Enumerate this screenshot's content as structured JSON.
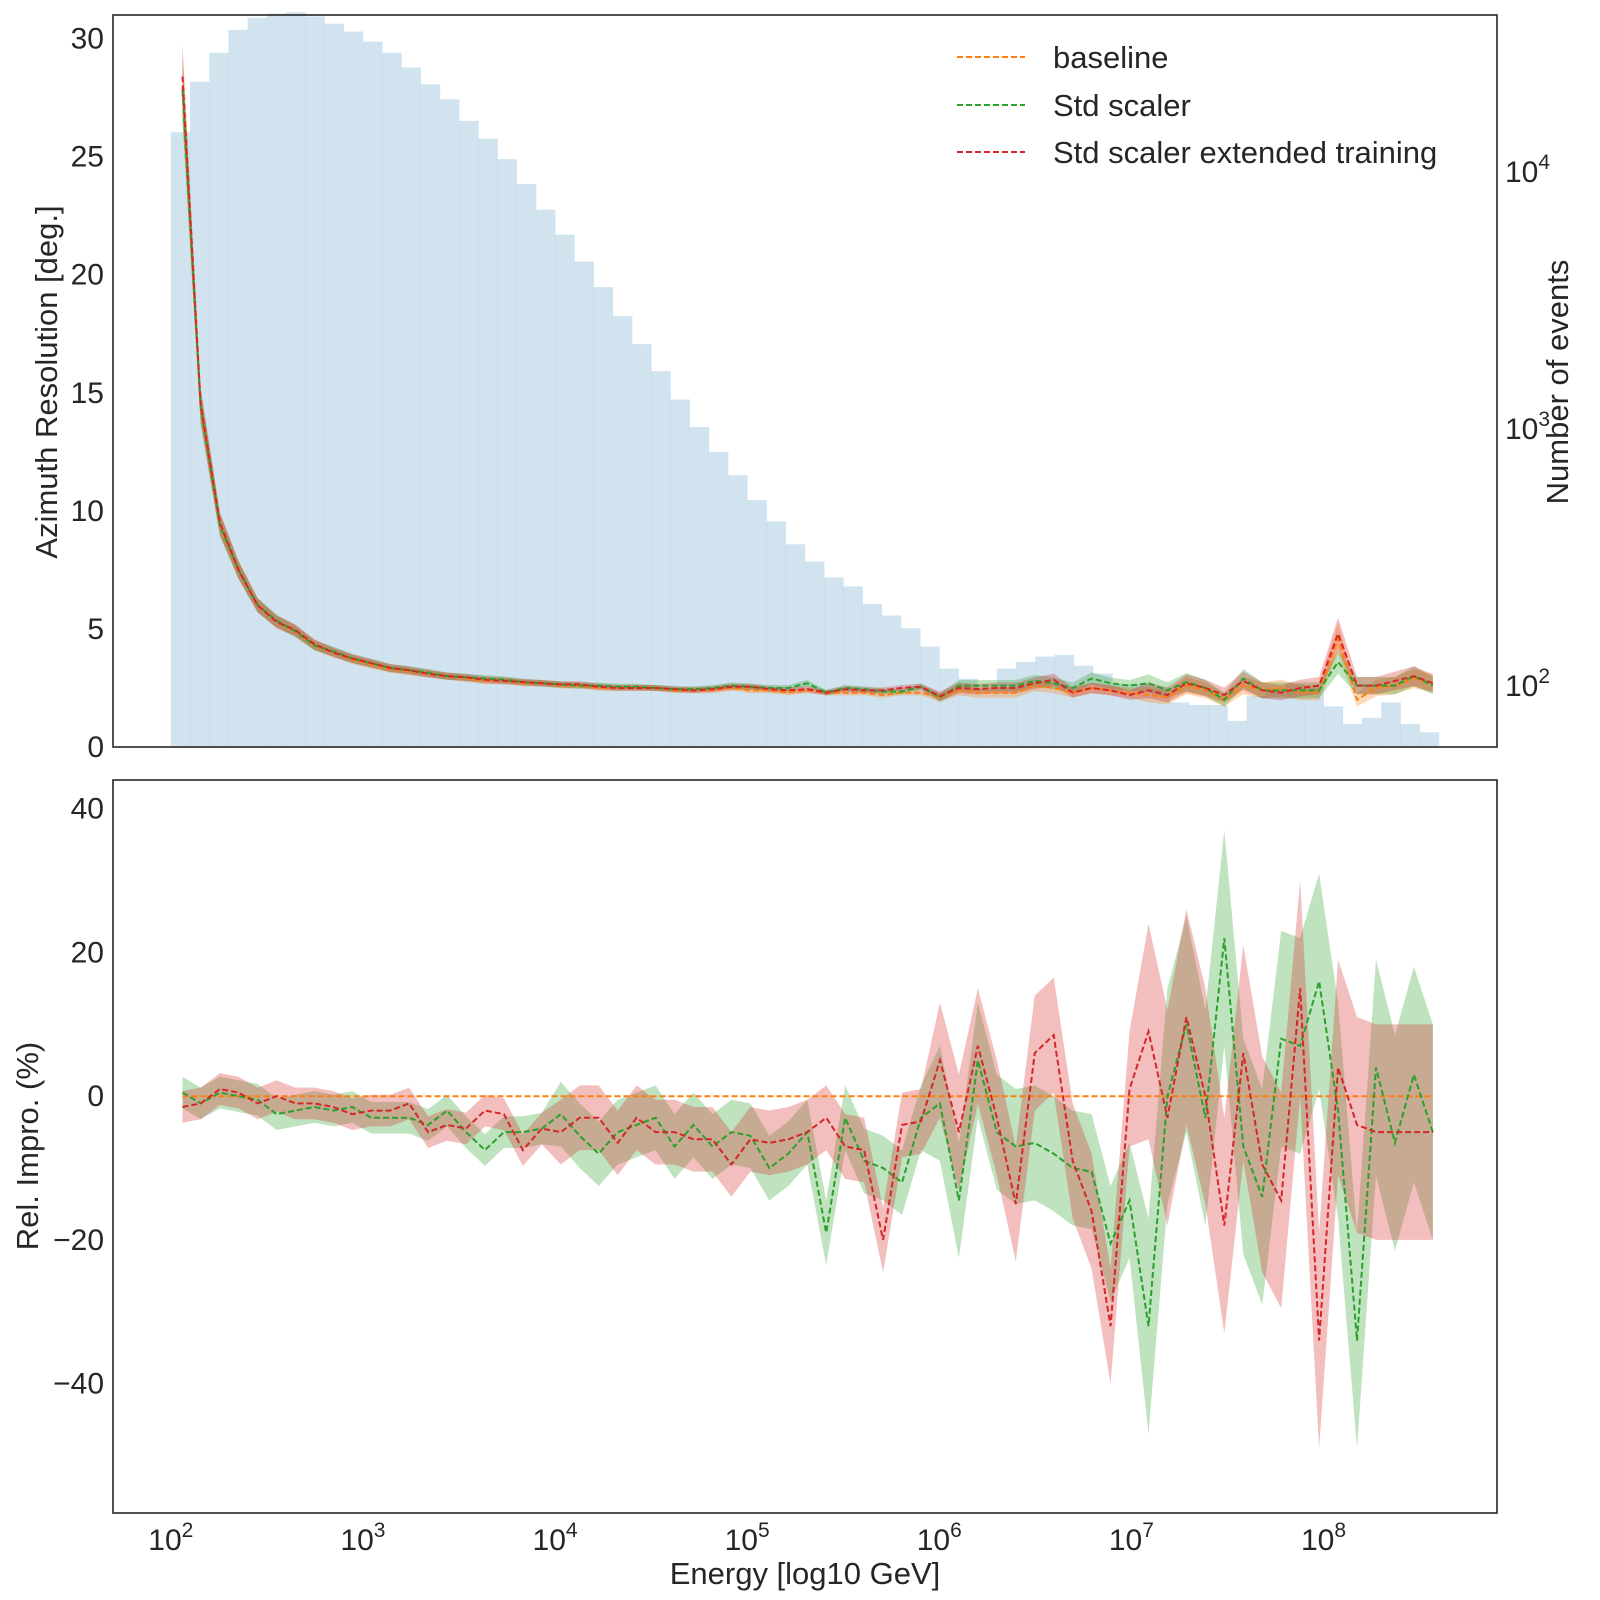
{
  "colors": {
    "baseline": "#ff7f0e",
    "std": "#2ca02c",
    "ext": "#d62728",
    "hist": "#b9d4e6",
    "text": "#262626"
  },
  "chart_data": [
    {
      "type": "line",
      "panel": "top",
      "ylabel": "Azimuth Resolution [deg.]",
      "ylabel_right": "Number of events",
      "xscale": "log",
      "xlim": [
        50,
        800000000
      ],
      "ylim": [
        0,
        31
      ],
      "yticks": [
        "0",
        "5",
        "10",
        "15",
        "20",
        "25",
        "30"
      ],
      "right_axis": {
        "scale": "log",
        "ylim": [
          57,
          40000
        ],
        "ticks": [
          {
            "base": "10",
            "exp": "2",
            "value": 100
          },
          {
            "base": "10",
            "exp": "3",
            "value": 1000
          },
          {
            "base": "10",
            "exp": "4",
            "value": 10000
          }
        ]
      },
      "legend": {
        "position": "upper right",
        "entries": [
          {
            "key": "baseline",
            "label": "baseline"
          },
          {
            "key": "std",
            "label": "Std scaler"
          },
          {
            "key": "ext",
            "label": "Std scaler extended training"
          }
        ]
      },
      "x": [
        115,
        143,
        180,
        225,
        283,
        355,
        445,
        559,
        701,
        880,
        1104,
        1386,
        1739,
        2183,
        2740,
        3439,
        4316,
        5417,
        6799,
        8534,
        10711,
        13443,
        16873,
        21177,
        26580,
        33361,
        41871,
        52553,
        65961,
        82788,
        103907,
        130416,
        163687,
        205446,
        257856,
        323638,
        406203,
        509831,
        639895,
        803140,
        1008030,
        1265190,
        1587950,
        1993060,
        2501520,
        3139690,
        3940670,
        4945980,
        6207760,
        7791440,
        9779130,
        12273900,
        15405100,
        19335200,
        24267900,
        30458800,
        38229000,
        47981700,
        60222300,
        75585600,
        94868800,
        119070000,
        149447000,
        187573000,
        235425000,
        295484000,
        370867000
      ],
      "series": [
        {
          "key": "baseline",
          "values": [
            28.0,
            14.4,
            9.4,
            7.5,
            6.0,
            5.3,
            4.9,
            4.3,
            4.0,
            3.7,
            3.5,
            3.3,
            3.2,
            3.1,
            3.0,
            2.9,
            2.8,
            2.8,
            2.7,
            2.7,
            2.6,
            2.6,
            2.5,
            2.5,
            2.5,
            2.5,
            2.4,
            2.4,
            2.4,
            2.5,
            2.4,
            2.4,
            2.3,
            2.4,
            2.3,
            2.3,
            2.3,
            2.2,
            2.3,
            2.3,
            2.1,
            2.4,
            2.3,
            2.3,
            2.3,
            2.6,
            2.5,
            2.3,
            2.5,
            2.4,
            2.3,
            2.2,
            2.1,
            2.6,
            2.4,
            2.0,
            2.6,
            2.4,
            2.5,
            2.3,
            2.3,
            4.6,
            2.0,
            2.5,
            2.6,
            2.9,
            2.7
          ]
        },
        {
          "key": "std",
          "values": [
            27.8,
            14.4,
            9.4,
            7.5,
            6.0,
            5.35,
            4.9,
            4.3,
            4.05,
            3.75,
            3.55,
            3.35,
            3.25,
            3.15,
            3.0,
            2.95,
            2.9,
            2.85,
            2.75,
            2.7,
            2.65,
            2.6,
            2.6,
            2.55,
            2.55,
            2.5,
            2.45,
            2.45,
            2.5,
            2.6,
            2.55,
            2.5,
            2.5,
            2.7,
            2.3,
            2.5,
            2.45,
            2.35,
            2.35,
            2.55,
            2.1,
            2.6,
            2.6,
            2.6,
            2.6,
            2.8,
            2.7,
            2.5,
            2.9,
            2.7,
            2.6,
            2.7,
            2.4,
            2.75,
            2.5,
            2.0,
            2.9,
            2.4,
            2.4,
            2.4,
            2.4,
            3.6,
            2.6,
            2.6,
            2.6,
            3.0,
            2.6
          ]
        },
        {
          "key": "ext",
          "values": [
            28.4,
            14.5,
            9.5,
            7.5,
            6.0,
            5.3,
            4.95,
            4.35,
            4.0,
            3.75,
            3.55,
            3.35,
            3.25,
            3.1,
            3.0,
            2.95,
            2.85,
            2.8,
            2.75,
            2.7,
            2.65,
            2.65,
            2.55,
            2.5,
            2.5,
            2.5,
            2.45,
            2.4,
            2.45,
            2.55,
            2.55,
            2.45,
            2.4,
            2.45,
            2.3,
            2.45,
            2.4,
            2.4,
            2.5,
            2.55,
            2.15,
            2.5,
            2.45,
            2.5,
            2.5,
            2.7,
            2.85,
            2.3,
            2.5,
            2.4,
            2.2,
            2.4,
            2.2,
            2.7,
            2.5,
            2.2,
            2.8,
            2.4,
            2.3,
            2.5,
            2.6,
            4.8,
            2.6,
            2.6,
            2.8,
            3.0,
            2.7
          ]
        }
      ],
      "histogram": {
        "log_x_start": 2.0,
        "log_x_step": 0.1,
        "counts": [
          14000,
          22000,
          28500,
          35000,
          39000,
          40500,
          41000,
          39500,
          37000,
          34500,
          31500,
          28500,
          25000,
          21500,
          18800,
          15500,
          13200,
          11000,
          8800,
          7000,
          5600,
          4400,
          3500,
          2700,
          2100,
          1650,
          1280,
          1000,
          800,
          650,
          520,
          430,
          350,
          300,
          260,
          240,
          205,
          185,
          165,
          140,
          115,
          105,
          95,
          115,
          122,
          128,
          130,
          118,
          110,
          100,
          100,
          98,
          85,
          83,
          83,
          72,
          90,
          95,
          100,
          97,
          82,
          70,
          74,
          85,
          70,
          65
        ]
      }
    },
    {
      "type": "line",
      "panel": "bottom",
      "xlabel": "Energy [log10 GeV]",
      "ylabel": "Rel. Impro. (%)",
      "xscale": "log",
      "xlim": [
        50,
        800000000
      ],
      "ylim": [
        -58,
        44
      ],
      "yticks": [
        "−40",
        "−20",
        "0",
        "20",
        "40"
      ],
      "xticks": [
        {
          "base": "10",
          "exp": "2",
          "value": 100
        },
        {
          "base": "10",
          "exp": "3",
          "value": 1000
        },
        {
          "base": "10",
          "exp": "4",
          "value": 10000
        },
        {
          "base": "10",
          "exp": "5",
          "value": 100000
        },
        {
          "base": "10",
          "exp": "6",
          "value": 1000000
        },
        {
          "base": "10",
          "exp": "7",
          "value": 10000000
        },
        {
          "base": "10",
          "exp": "8",
          "value": 100000000
        }
      ],
      "series": [
        {
          "key": "baseline",
          "values": [
            0.0,
            0.0,
            0.0,
            0.0,
            0.0,
            0.0,
            0.0,
            0.0,
            0.0,
            0.0,
            0.0,
            0.0,
            0.0,
            0.0,
            0.0,
            0.0,
            0.0,
            0.0,
            0.0,
            0.0,
            0.0,
            0.0,
            0.0,
            0.0,
            0.0,
            0.0,
            0.0,
            0.0,
            0.0,
            0.0,
            0.0,
            0.0,
            0.0,
            0.0,
            0.0,
            0.0,
            0.0,
            0.0,
            0.0,
            0.0,
            0.0,
            0.0,
            0.0,
            0.0,
            0.0,
            0.0,
            0.0,
            0.0,
            0.0,
            0.0,
            0.0,
            0.0,
            0.0,
            0.0,
            0.0,
            0.0,
            0.0,
            0.0,
            0.0,
            0.0,
            0.0,
            0.0,
            0.0,
            0.0,
            0.0,
            0.0,
            0.0
          ]
        },
        {
          "key": "std",
          "values": [
            0.5,
            -1.0,
            0.5,
            0.0,
            -0.5,
            -2.5,
            -2.0,
            -1.5,
            -2.0,
            -1.5,
            -3.0,
            -3.0,
            -3.0,
            -4.0,
            -2.0,
            -5.0,
            -7.5,
            -5.0,
            -5.0,
            -4.5,
            -2.5,
            -5.5,
            -8.0,
            -5.0,
            -4.0,
            -3.0,
            -7.0,
            -4.0,
            -7.0,
            -5.0,
            -5.5,
            -10.0,
            -8.0,
            -5.0,
            -19.0,
            -3.0,
            -9.0,
            -10.0,
            -12.0,
            -3.0,
            -1.0,
            -14.5,
            5.0,
            -5.0,
            -7.0,
            -6.5,
            -8.0,
            -10.0,
            -10.5,
            -20.5,
            -14.5,
            -32.0,
            0.0,
            10.0,
            -3.0,
            22.0,
            -7.0,
            -14.0,
            8.0,
            7.0,
            16.0,
            -2.0,
            -34.0,
            4.0,
            -6.5,
            3.0,
            -5.0
          ]
        },
        {
          "key": "ext",
          "values": [
            -1.5,
            -1.0,
            1.0,
            0.5,
            -1.0,
            0.0,
            -1.0,
            -1.0,
            -1.5,
            -2.5,
            -2.0,
            -2.0,
            -1.0,
            -5.0,
            -4.0,
            -4.5,
            -2.0,
            -2.5,
            -7.5,
            -4.5,
            -5.0,
            -3.0,
            -3.0,
            -6.5,
            -3.0,
            -5.0,
            -5.0,
            -6.0,
            -6.0,
            -9.5,
            -6.0,
            -6.5,
            -6.0,
            -5.0,
            -3.0,
            -7.0,
            -7.5,
            -20.0,
            -4.0,
            -3.5,
            5.0,
            -5.0,
            7.0,
            -3.0,
            -15.0,
            6.0,
            8.5,
            -9.0,
            -16.0,
            -32.0,
            1.0,
            9.0,
            -3.0,
            11.0,
            0.0,
            -18.0,
            6.0,
            -9.5,
            -14.5,
            15.0,
            -34.0,
            4.0,
            -4.0,
            -5.0,
            -5.0,
            -5.0,
            -5.0
          ]
        }
      ]
    }
  ]
}
